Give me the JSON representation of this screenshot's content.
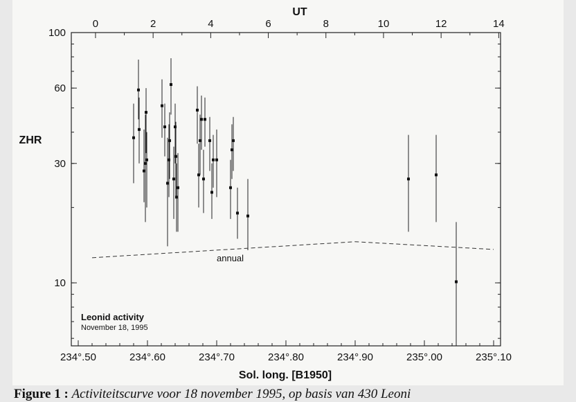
{
  "chart_data": {
    "type": "scatter",
    "xlabel": "Sol. long.  [B1950]",
    "x2label": "UT",
    "ylabel": "ZHR",
    "xlim": [
      234.49,
      235.11
    ],
    "ylim": [
      5.6,
      100
    ],
    "yscale": "log",
    "x_ticks": [
      234.5,
      234.6,
      234.7,
      234.8,
      234.9,
      235.0,
      235.1
    ],
    "x_tick_labels": [
      "234°.50",
      "234°.60",
      "234°.70",
      "234°.80",
      "234°.90",
      "235°.00",
      "235°.10"
    ],
    "ut_ticks": [
      0,
      2,
      4,
      6,
      8,
      10,
      12,
      14
    ],
    "ut_tick_labels": [
      "0",
      "2",
      "4",
      "6",
      "8",
      "10",
      "12",
      "14"
    ],
    "y_ticks": [
      10,
      30,
      60,
      100
    ],
    "y_tick_labels": [
      "10",
      "30",
      "60",
      "100"
    ],
    "annotation_text": "annual",
    "annotation": {
      "title": "Leonid activity",
      "subtitle": "November 18, 1995"
    },
    "grid": false,
    "points": [
      {
        "x": 234.58,
        "y": 38,
        "lo": 25,
        "hi": 52
      },
      {
        "x": 234.587,
        "y": 59,
        "lo": 45,
        "hi": 78
      },
      {
        "x": 234.588,
        "y": 41,
        "lo": 30,
        "hi": 55
      },
      {
        "x": 234.595,
        "y": 28,
        "lo": 21,
        "hi": 41
      },
      {
        "x": 234.597,
        "y": 30,
        "lo": 17.5,
        "hi": 47
      },
      {
        "x": 234.598,
        "y": 48,
        "lo": 33,
        "hi": 60
      },
      {
        "x": 234.599,
        "y": 31,
        "lo": 20,
        "hi": 40
      },
      {
        "x": 234.621,
        "y": 51,
        "lo": 38,
        "hi": 65
      },
      {
        "x": 234.625,
        "y": 42,
        "lo": 32,
        "hi": 52
      },
      {
        "x": 234.629,
        "y": 25,
        "lo": 14,
        "hi": 38
      },
      {
        "x": 234.631,
        "y": 31,
        "lo": 22,
        "hi": 43
      },
      {
        "x": 234.632,
        "y": 37,
        "lo": 26,
        "hi": 48
      },
      {
        "x": 234.634,
        "y": 62,
        "lo": 47,
        "hi": 79
      },
      {
        "x": 234.638,
        "y": 26,
        "lo": 18,
        "hi": 35
      },
      {
        "x": 234.64,
        "y": 42,
        "lo": 30,
        "hi": 52
      },
      {
        "x": 234.641,
        "y": 32,
        "lo": 22,
        "hi": 44
      },
      {
        "x": 234.642,
        "y": 22,
        "lo": 16,
        "hi": 30
      },
      {
        "x": 234.644,
        "y": 24,
        "lo": 16,
        "hi": 33
      },
      {
        "x": 234.672,
        "y": 49,
        "lo": 36,
        "hi": 61
      },
      {
        "x": 234.674,
        "y": 27,
        "lo": 20,
        "hi": 36
      },
      {
        "x": 234.676,
        "y": 37,
        "lo": 27,
        "hi": 47
      },
      {
        "x": 234.678,
        "y": 45,
        "lo": 34,
        "hi": 56
      },
      {
        "x": 234.681,
        "y": 26,
        "lo": 19,
        "hi": 34
      },
      {
        "x": 234.683,
        "y": 45,
        "lo": 35,
        "hi": 55
      },
      {
        "x": 234.69,
        "y": 37,
        "lo": 28,
        "hi": 46
      },
      {
        "x": 234.693,
        "y": 23,
        "lo": 18,
        "hi": 30
      },
      {
        "x": 234.695,
        "y": 31,
        "lo": 24,
        "hi": 39
      },
      {
        "x": 234.7,
        "y": 31,
        "lo": 22,
        "hi": 41
      },
      {
        "x": 234.72,
        "y": 24,
        "lo": 18,
        "hi": 31
      },
      {
        "x": 234.722,
        "y": 34,
        "lo": 26,
        "hi": 43
      },
      {
        "x": 234.724,
        "y": 37,
        "lo": 28,
        "hi": 46
      },
      {
        "x": 234.73,
        "y": 19,
        "lo": 15,
        "hi": 24
      },
      {
        "x": 234.745,
        "y": 18.5,
        "lo": 13.5,
        "hi": 26
      },
      {
        "x": 234.977,
        "y": 26,
        "lo": 16,
        "hi": 39
      },
      {
        "x": 235.017,
        "y": 27,
        "lo": 17.5,
        "hi": 39
      },
      {
        "x": 235.046,
        "y": 10.1,
        "lo": 4.5,
        "hi": 17.5
      }
    ],
    "annual_curve": [
      {
        "x": 234.52,
        "y": 12.6
      },
      {
        "x": 234.9,
        "y": 14.6
      },
      {
        "x": 235.1,
        "y": 13.6
      }
    ]
  },
  "caption": {
    "label": "Figure 1 :",
    "text": "Activiteitscurve voor 18 november 1995, op basis van 430 Leoni"
  }
}
